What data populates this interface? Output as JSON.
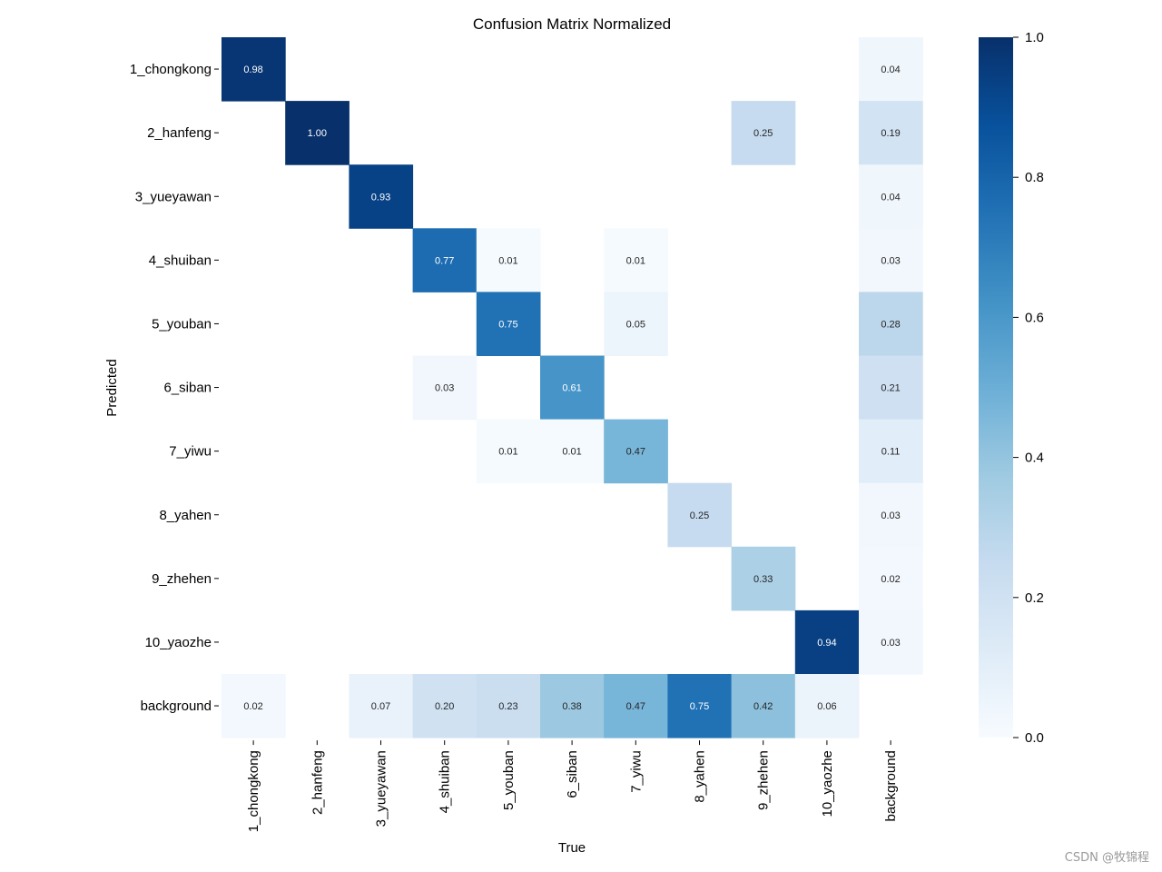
{
  "chart_data": {
    "type": "heatmap",
    "title": "Confusion Matrix Normalized",
    "xlabel": "True",
    "ylabel": "Predicted",
    "x_categories": [
      "1_chongkong",
      "2_hanfeng",
      "3_yueyawan",
      "4_shuiban",
      "5_youban",
      "6_siban",
      "7_yiwu",
      "8_yahen",
      "9_zhehen",
      "10_yaozhe",
      "background"
    ],
    "y_categories": [
      "1_chongkong",
      "2_hanfeng",
      "3_yueyawan",
      "4_shuiban",
      "5_youban",
      "6_siban",
      "7_yiwu",
      "8_yahen",
      "9_zhehen",
      "10_yaozhe",
      "background"
    ],
    "values": [
      [
        0.98,
        null,
        null,
        null,
        null,
        null,
        null,
        null,
        null,
        null,
        0.04
      ],
      [
        null,
        1.0,
        null,
        null,
        null,
        null,
        null,
        null,
        0.25,
        null,
        0.19
      ],
      [
        null,
        null,
        0.93,
        null,
        null,
        null,
        null,
        null,
        null,
        null,
        0.04
      ],
      [
        null,
        null,
        null,
        0.77,
        0.01,
        null,
        0.01,
        null,
        null,
        null,
        0.03
      ],
      [
        null,
        null,
        null,
        null,
        0.75,
        null,
        0.05,
        null,
        null,
        null,
        0.28
      ],
      [
        null,
        null,
        null,
        0.03,
        null,
        0.61,
        null,
        null,
        null,
        null,
        0.21
      ],
      [
        null,
        null,
        null,
        null,
        0.01,
        0.01,
        0.47,
        null,
        null,
        null,
        0.11
      ],
      [
        null,
        null,
        null,
        null,
        null,
        null,
        null,
        0.25,
        null,
        null,
        0.03
      ],
      [
        null,
        null,
        null,
        null,
        null,
        null,
        null,
        null,
        0.33,
        null,
        0.02
      ],
      [
        null,
        null,
        null,
        null,
        null,
        null,
        null,
        null,
        null,
        0.94,
        0.03
      ],
      [
        0.02,
        null,
        0.07,
        0.2,
        0.23,
        0.38,
        0.47,
        0.75,
        0.42,
        0.06,
        null
      ]
    ],
    "colorbar": {
      "min": 0.0,
      "max": 1.0,
      "ticks": [
        0.0,
        0.2,
        0.4,
        0.6,
        0.8,
        1.0
      ],
      "tick_labels": [
        "0.0",
        "0.2",
        "0.4",
        "0.6",
        "0.8",
        "1.0"
      ],
      "colormap": "Blues"
    },
    "value_format": "2 decimals"
  },
  "watermark": "CSDN @牧锦程"
}
